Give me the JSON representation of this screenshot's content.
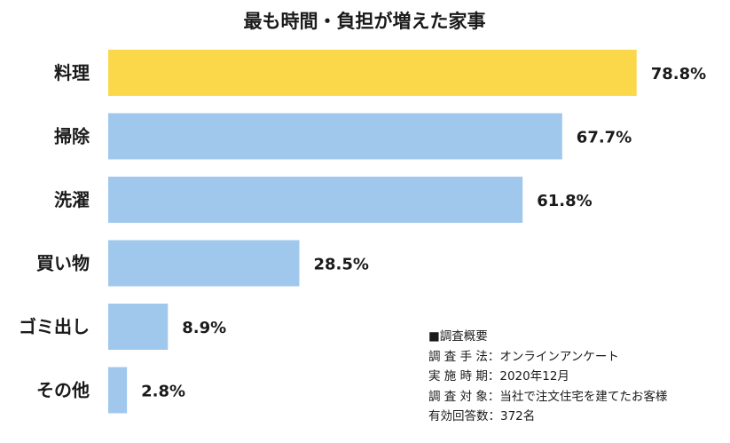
{
  "chart_data": {
    "type": "bar",
    "orientation": "horizontal",
    "title": "最も時間・負担が増えた家事",
    "categories": [
      "料理",
      "掃除",
      "洗濯",
      "買い物",
      "ゴミ出し",
      "その他"
    ],
    "values": [
      78.8,
      67.7,
      61.8,
      28.5,
      8.9,
      2.8
    ],
    "value_labels": [
      "78.8%",
      "67.7%",
      "61.8%",
      "28.5%",
      "8.9%",
      "2.8%"
    ],
    "unit": "%",
    "xlim": [
      0,
      100
    ],
    "grid": false,
    "legend": "none",
    "colors": {
      "highlight": "#fad84a",
      "default": "#a0c8ec"
    },
    "highlight_index": 0
  },
  "survey": {
    "heading": "■調査概要",
    "lines": [
      "調 査 手 法：オンラインアンケート",
      "実 施 時 期：2020年12月",
      "調 査 対 象：当社で注文住宅を建てたお客様",
      "有効回答数：372名"
    ]
  }
}
